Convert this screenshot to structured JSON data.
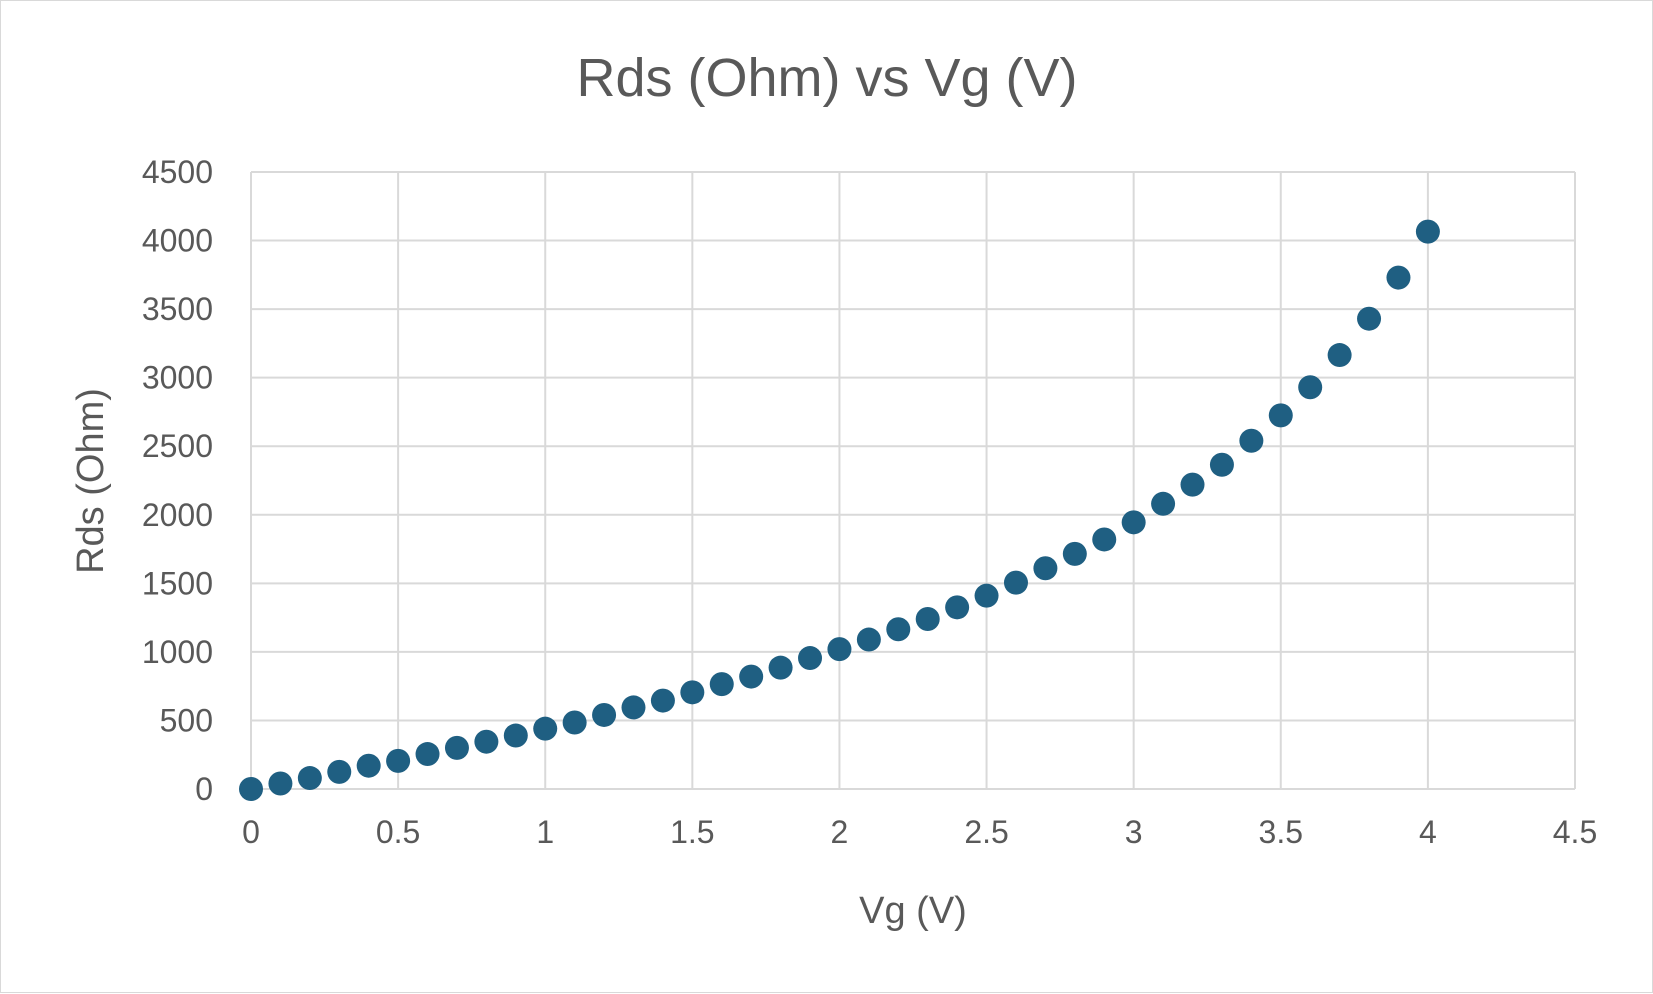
{
  "chart_data": {
    "type": "scatter",
    "title": "Rds (Ohm) vs Vg (V)",
    "xlabel": "Vg (V)",
    "ylabel": "Rds (Ohm)",
    "xlim": [
      0,
      4.5
    ],
    "ylim": [
      0,
      4500
    ],
    "x_ticks": [
      "0",
      "0.5",
      "1",
      "1.5",
      "2",
      "2.5",
      "3",
      "3.5",
      "4",
      "4.5"
    ],
    "y_ticks": [
      "0",
      "500",
      "1000",
      "1500",
      "2000",
      "2500",
      "3000",
      "3500",
      "4000",
      "4500"
    ],
    "grid": true,
    "legend": "none",
    "marker_color": "#1f5f82",
    "series": [
      {
        "x": [
          0,
          0.1,
          0.2,
          0.3,
          0.4,
          0.5,
          0.6,
          0.7,
          0.8,
          0.9,
          1.0,
          1.1,
          1.2,
          1.3,
          1.4,
          1.5,
          1.6,
          1.7,
          1.8,
          1.9,
          2.0,
          2.1,
          2.2,
          2.3,
          2.4,
          2.5,
          2.6,
          2.7,
          2.8,
          2.9,
          3.0,
          3.1,
          3.2,
          3.3,
          3.4,
          3.5,
          3.6,
          3.7,
          3.8,
          3.9,
          4.0
        ],
        "y": [
          0,
          40,
          80,
          125,
          170,
          205,
          255,
          300,
          345,
          390,
          440,
          485,
          540,
          595,
          645,
          705,
          765,
          820,
          885,
          955,
          1020,
          1090,
          1165,
          1240,
          1325,
          1410,
          1505,
          1610,
          1715,
          1820,
          1945,
          2080,
          2220,
          2365,
          2540,
          2725,
          2930,
          3165,
          3430,
          3730,
          4065
        ]
      }
    ]
  }
}
